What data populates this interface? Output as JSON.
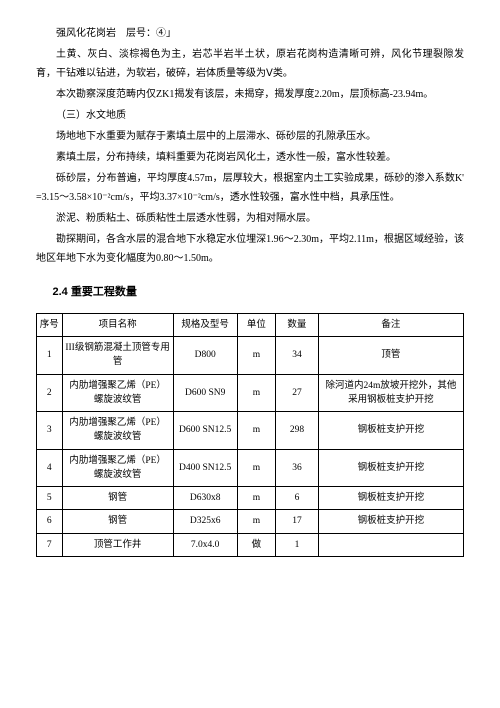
{
  "p1": "强风化花岗岩　层号：④」",
  "p2": "土黄、灰白、淡棕褐色为主，岩芯半岩半土状，原岩花岗构造清晰可辨，风化节理裂隙发育，干钻难以钻进，为软岩，破碎，岩体质量等级为Ⅴ类。",
  "p3": "本次勘察深度范畴内仅ZK1揭发有该层，未揭穿，揭发厚度2.20m，层顶标高-23.94m。",
  "p4": "（三）水文地质",
  "p5": "场地地下水重要为赋存于素填土层中的上层滞水、砾砂层的孔隙承压水。",
  "p6": "素填土层，分布持续，填料重要为花岗岩风化土，透水性一般，富水性较差。",
  "p7": "砾砂层，分布普遍，平均厚度4.57m，层厚较大，根据室内土工实验成果，砾砂的渗入系数K' =3.15～3.58×10⁻²cm/s，平均3.37×10⁻²cm/s，透水性较强，富水性中档，具承压性。",
  "p8": "淤泥、粉质粘土、砾质粘性土层透水性弱，为相对隔水层。",
  "p9": "勘探期间，各含水层的混合地下水稳定水位埋深1.96～2.30m，平均2.11m，根据区域经验，该地区年地下水为变化幅度为0.80～1.50m。",
  "section": "2.4 重要工程数量",
  "headers": {
    "seq": "序号",
    "name": "项目名称",
    "spec": "规格及型号",
    "unit": "单位",
    "qty": "数量",
    "note": "备注"
  },
  "rows": [
    {
      "seq": "1",
      "name": "III级钢筋混凝土顶管专用管",
      "spec": "D800",
      "unit": "m",
      "qty": "34",
      "note": "顶管"
    },
    {
      "seq": "2",
      "name": "内肋增强聚乙烯（PE）螺旋波纹管",
      "spec": "D600 SN9",
      "unit": "m",
      "qty": "27",
      "note": "除河道内24m放坡开挖外，其他采用钢板桩支护开挖"
    },
    {
      "seq": "3",
      "name": "内肋增强聚乙烯（PE）螺旋波纹管",
      "spec": "D600 SN12.5",
      "unit": "m",
      "qty": "298",
      "note": "钢板桩支护开挖"
    },
    {
      "seq": "4",
      "name": "内肋增强聚乙烯（PE）螺旋波纹管",
      "spec": "D400 SN12.5",
      "unit": "m",
      "qty": "36",
      "note": "钢板桩支护开挖"
    },
    {
      "seq": "5",
      "name": "钢管",
      "spec": "D630x8",
      "unit": "m",
      "qty": "6",
      "note": "钢板桩支护开挖"
    },
    {
      "seq": "6",
      "name": "钢管",
      "spec": "D325x6",
      "unit": "m",
      "qty": "17",
      "note": "钢板桩支护开挖"
    },
    {
      "seq": "7",
      "name": "顶管工作井",
      "spec": "7.0x4.0",
      "unit": "做",
      "qty": "1",
      "note": ""
    }
  ]
}
